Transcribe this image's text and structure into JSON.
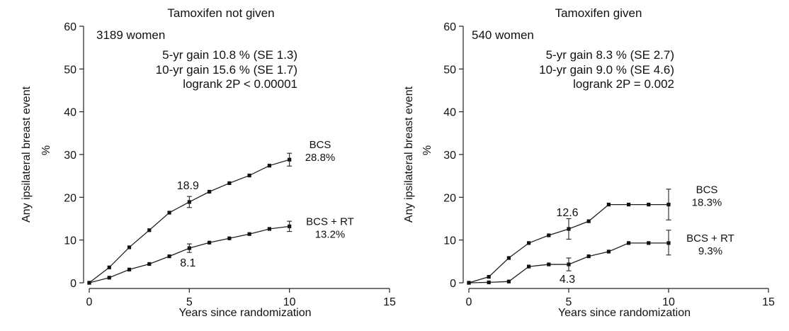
{
  "chart_data": [
    {
      "type": "line",
      "title": "Tamoxifen not given",
      "xlabel": "Years since randomization",
      "ylabel": "Any ipsilateral breast event",
      "yunit": "%",
      "xlim": [
        0,
        15
      ],
      "ylim": [
        0,
        60
      ],
      "xticks": [
        0,
        5,
        10,
        15
      ],
      "yticks": [
        0,
        10,
        20,
        30,
        40,
        50,
        60
      ],
      "annotations": {
        "count": "3189 women",
        "gain5": "5-yr gain 10.8 % (SE 1.3)",
        "gain10": "10-yr gain 15.6 % (SE 1.7)",
        "logrank": "logrank 2P < 0.00001"
      },
      "x": [
        0,
        1,
        2,
        3,
        4,
        5,
        6,
        7,
        8,
        9,
        10
      ],
      "series": [
        {
          "name": "BCS",
          "end_label": "28.8%",
          "values": [
            0,
            3.6,
            8.3,
            12.3,
            16.4,
            18.9,
            21.3,
            23.3,
            25.1,
            27.4,
            28.8
          ],
          "point_label": {
            "x": 5,
            "text": "18.9"
          },
          "error_bars": [
            {
              "x": 5,
              "lo": 17.6,
              "hi": 20.2
            },
            {
              "x": 10,
              "lo": 27.3,
              "hi": 30.3
            }
          ]
        },
        {
          "name": "BCS + RT",
          "end_label": "13.2%",
          "values": [
            0,
            1.2,
            3.1,
            4.4,
            6.2,
            8.1,
            9.4,
            10.4,
            11.4,
            12.6,
            13.2
          ],
          "point_label": {
            "x": 5,
            "text": "8.1"
          },
          "error_bars": [
            {
              "x": 5,
              "lo": 7.1,
              "hi": 9.1
            },
            {
              "x": 10,
              "lo": 12.0,
              "hi": 14.4
            }
          ]
        }
      ]
    },
    {
      "type": "line",
      "title": "Tamoxifen given",
      "xlabel": "Years since randomization",
      "ylabel": "Any ipsilateral breast event",
      "yunit": "%",
      "xlim": [
        0,
        15
      ],
      "ylim": [
        0,
        60
      ],
      "xticks": [
        0,
        5,
        10,
        15
      ],
      "yticks": [
        0,
        10,
        20,
        30,
        40,
        50,
        60
      ],
      "annotations": {
        "count": "540 women",
        "gain5": "5-yr gain 8.3 % (SE 2.7)",
        "gain10": "10-yr gain 9.0 % (SE 4.6)",
        "logrank": "logrank 2P = 0.002"
      },
      "x": [
        0,
        1,
        2,
        3,
        4,
        5,
        6,
        7,
        8,
        9,
        10
      ],
      "series": [
        {
          "name": "BCS",
          "end_label": "18.3%",
          "values": [
            0,
            1.4,
            5.8,
            9.3,
            11.1,
            12.6,
            14.4,
            18.3,
            18.3,
            18.3,
            18.3
          ],
          "point_label": {
            "x": 5,
            "text": "12.6"
          },
          "error_bars": [
            {
              "x": 5,
              "lo": 10.2,
              "hi": 15.0
            },
            {
              "x": 10,
              "lo": 14.7,
              "hi": 21.9
            }
          ]
        },
        {
          "name": "BCS + RT",
          "end_label": "9.3%",
          "values": [
            0,
            0.1,
            0.3,
            3.8,
            4.3,
            4.3,
            6.2,
            7.3,
            9.3,
            9.3,
            9.3
          ],
          "point_label": {
            "x": 5,
            "text": "4.3"
          },
          "error_bars": [
            {
              "x": 5,
              "lo": 2.8,
              "hi": 5.8
            },
            {
              "x": 10,
              "lo": 6.5,
              "hi": 12.3
            }
          ]
        }
      ]
    }
  ]
}
